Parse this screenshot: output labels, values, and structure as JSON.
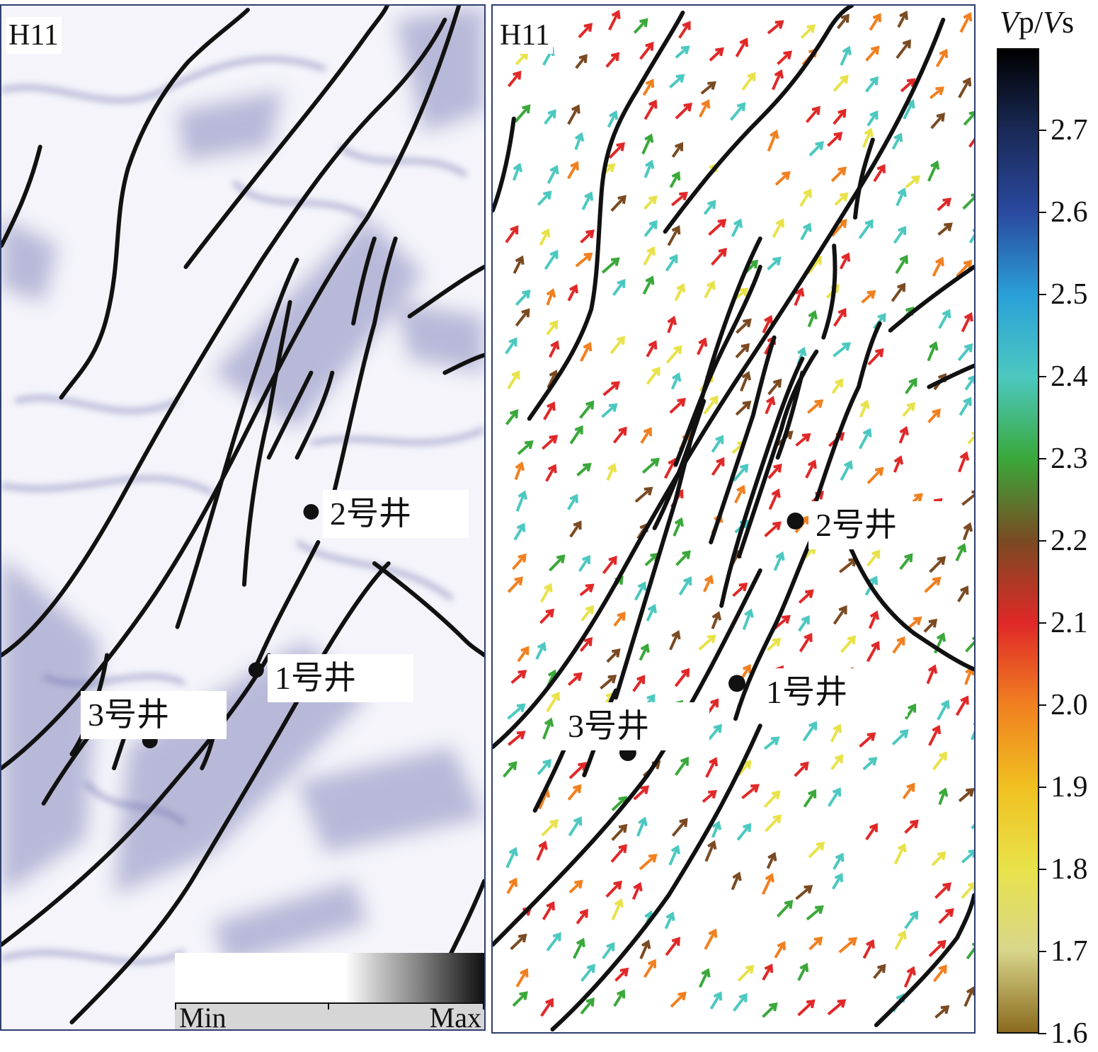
{
  "left_panel": {
    "horizon_label": "H11",
    "wells": [
      {
        "id": "well-2",
        "label": "2号井"
      },
      {
        "id": "well-1",
        "label": "1号井"
      },
      {
        "id": "well-3",
        "label": "3号井"
      }
    ],
    "legend": {
      "min_label": "Min",
      "max_label": "Max",
      "colors": [
        "#ffffff",
        "#7d7d7d",
        "#111111"
      ]
    }
  },
  "right_panel": {
    "horizon_label": "H11",
    "wells": [
      {
        "id": "well-2",
        "label": "2号井"
      },
      {
        "id": "well-1",
        "label": "1号井"
      },
      {
        "id": "well-3",
        "label": "3号井"
      }
    ]
  },
  "colorbar": {
    "title_italic_1": "V",
    "title_mid": "p/",
    "title_italic_2": "V",
    "title_end": "s",
    "ticks": [
      "2.7",
      "2.6",
      "2.5",
      "2.4",
      "2.3",
      "2.2",
      "2.1",
      "2.0",
      "1.9",
      "1.8",
      "1.7",
      "1.6"
    ],
    "range": [
      1.6,
      2.8
    ],
    "colors": {
      "1.6": "#8a6a1e",
      "1.7": "#d8d68a",
      "1.8": "#e8e24a",
      "1.9": "#f0c020",
      "2.0": "#f08020",
      "2.1": "#e02828",
      "2.2": "#7a4a22",
      "2.3": "#3aa83a",
      "2.4": "#4cc8c0",
      "2.5": "#2aa0d8",
      "2.6": "#2a4aa0",
      "2.7": "#1a2a58",
      "2.8": "#000000"
    }
  }
}
